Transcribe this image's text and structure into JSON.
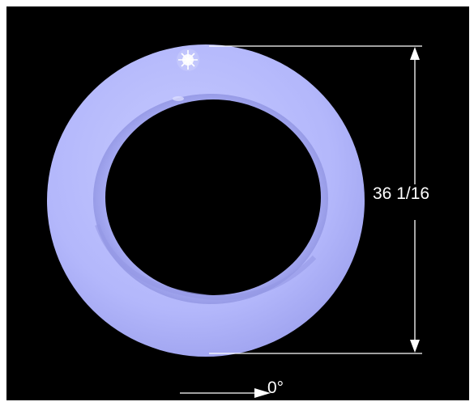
{
  "photo": {
    "background_color": "#000000",
    "ring_color": "#b4b8ff",
    "ring_shadow_color": "#8f93e6",
    "dimension_label": "36 1/16",
    "orientation_label": "0°",
    "annotation_color": "#ffffff"
  }
}
